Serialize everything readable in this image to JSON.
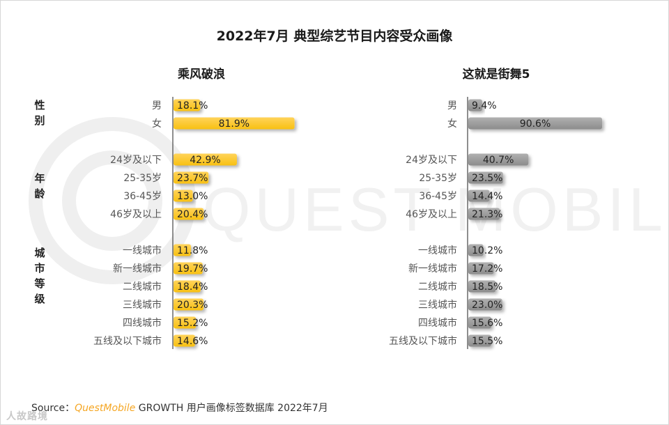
{
  "title": "2022年7月 典型综艺节目内容受众画像",
  "watermark_text": "QUEST MOBILE",
  "groups": [
    {
      "label": "性别",
      "chars": [
        "性",
        "别"
      ]
    },
    {
      "label": "年龄",
      "chars": [
        "年",
        "龄"
      ]
    },
    {
      "label": "城市等级",
      "chars": [
        "城",
        "市",
        "等",
        "级"
      ]
    }
  ],
  "source": {
    "prefix": "Source：",
    "brand": "QuestMobile",
    "text": " GROWTH 用户画像标签数据库 2022年7月"
  },
  "corner_mark": "人故路境",
  "colors": {
    "series1": "#f8c012",
    "series1_light": "#ffd35a",
    "series2": "#8c8c8c",
    "series2_light": "#b0b0b0",
    "axis": "#444444",
    "label_text": "#555555",
    "value_text": "#222222"
  },
  "chart_data": [
    {
      "type": "bar",
      "orientation": "horizontal",
      "title": "乘风破浪",
      "categories": [
        "男",
        "女",
        "24岁及以下",
        "25-35岁",
        "36-45岁",
        "46岁及以上",
        "一线城市",
        "新一线城市",
        "二线城市",
        "三线城市",
        "四线城市",
        "五线及以下城市"
      ],
      "values": [
        18.1,
        81.9,
        42.9,
        23.7,
        13.0,
        20.4,
        11.8,
        19.7,
        18.4,
        20.3,
        15.2,
        14.6
      ],
      "labels": [
        "18.1%",
        "81.9%",
        "42.9%",
        "23.7%",
        "13.0%",
        "20.4%",
        "11.8%",
        "19.7%",
        "18.4%",
        "20.3%",
        "15.2%",
        "14.6%"
      ],
      "unit": "%",
      "xlim": [
        0,
        100
      ]
    },
    {
      "type": "bar",
      "orientation": "horizontal",
      "title": "这就是街舞5",
      "categories": [
        "男",
        "女",
        "24岁及以下",
        "25-35岁",
        "36-45岁",
        "46岁及以上",
        "一线城市",
        "新一线城市",
        "二线城市",
        "三线城市",
        "四线城市",
        "五线及以下城市"
      ],
      "values": [
        9.4,
        90.6,
        40.7,
        23.5,
        14.4,
        21.3,
        10.2,
        17.2,
        18.5,
        23.0,
        15.6,
        15.5
      ],
      "labels": [
        "9.4%",
        "90.6%",
        "40.7%",
        "23.5%",
        "14.4%",
        "21.3%",
        "10.2%",
        "17.2%",
        "18.5%",
        "23.0%",
        "15.6%",
        "15.5%"
      ],
      "unit": "%",
      "xlim": [
        0,
        100
      ]
    }
  ]
}
